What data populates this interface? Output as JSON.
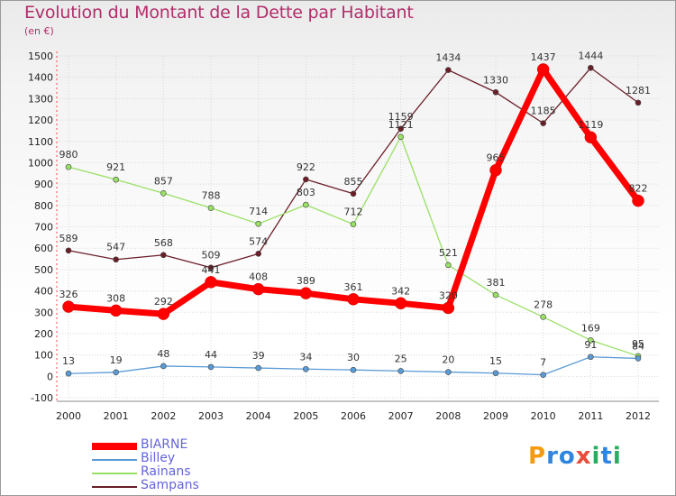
{
  "header": {
    "title": "Evolution du Montant de la Dette par Habitant",
    "subtitle": "(en €)"
  },
  "brand": {
    "letters": [
      "P",
      "r",
      "o",
      "x",
      "i",
      "t",
      "i"
    ],
    "colors": [
      "#f39c12",
      "#2e86de",
      "#2e86de",
      "#e74c3c",
      "#27ae60",
      "#2e86de",
      "#27ae60"
    ]
  },
  "chart_data": {
    "type": "line",
    "title": "Evolution du Montant de la Dette par Habitant",
    "ylabel": "(en €)",
    "xlabel": "",
    "x": [
      "2000",
      "2001",
      "2002",
      "2003",
      "2004",
      "2005",
      "2006",
      "2007",
      "2008",
      "2009",
      "2010",
      "2011",
      "2012"
    ],
    "ylim": [
      -100,
      1500
    ],
    "yticks": [
      -100,
      0,
      100,
      200,
      300,
      400,
      500,
      600,
      700,
      800,
      900,
      1000,
      1100,
      1200,
      1300,
      1400,
      1500
    ],
    "legend_position": "bottom-left",
    "series": [
      {
        "name": "BIARNE",
        "color": "#ff0000",
        "values": [
          326,
          308,
          292,
          441,
          408,
          389,
          361,
          342,
          320,
          965,
          1437,
          1119,
          822
        ]
      },
      {
        "name": "Billey",
        "color": "#5b9bd5",
        "values": [
          13,
          19,
          48,
          44,
          39,
          34,
          30,
          25,
          20,
          15,
          7,
          91,
          84
        ]
      },
      {
        "name": "Rainans",
        "color": "#99e066",
        "values": [
          980,
          921,
          857,
          788,
          714,
          803,
          712,
          1121,
          521,
          381,
          278,
          169,
          95
        ]
      },
      {
        "name": "Sampans",
        "color": "#6b1e28",
        "values": [
          589,
          547,
          568,
          509,
          574,
          922,
          855,
          1159,
          1434,
          1330,
          1185,
          1444,
          1281
        ]
      }
    ]
  }
}
